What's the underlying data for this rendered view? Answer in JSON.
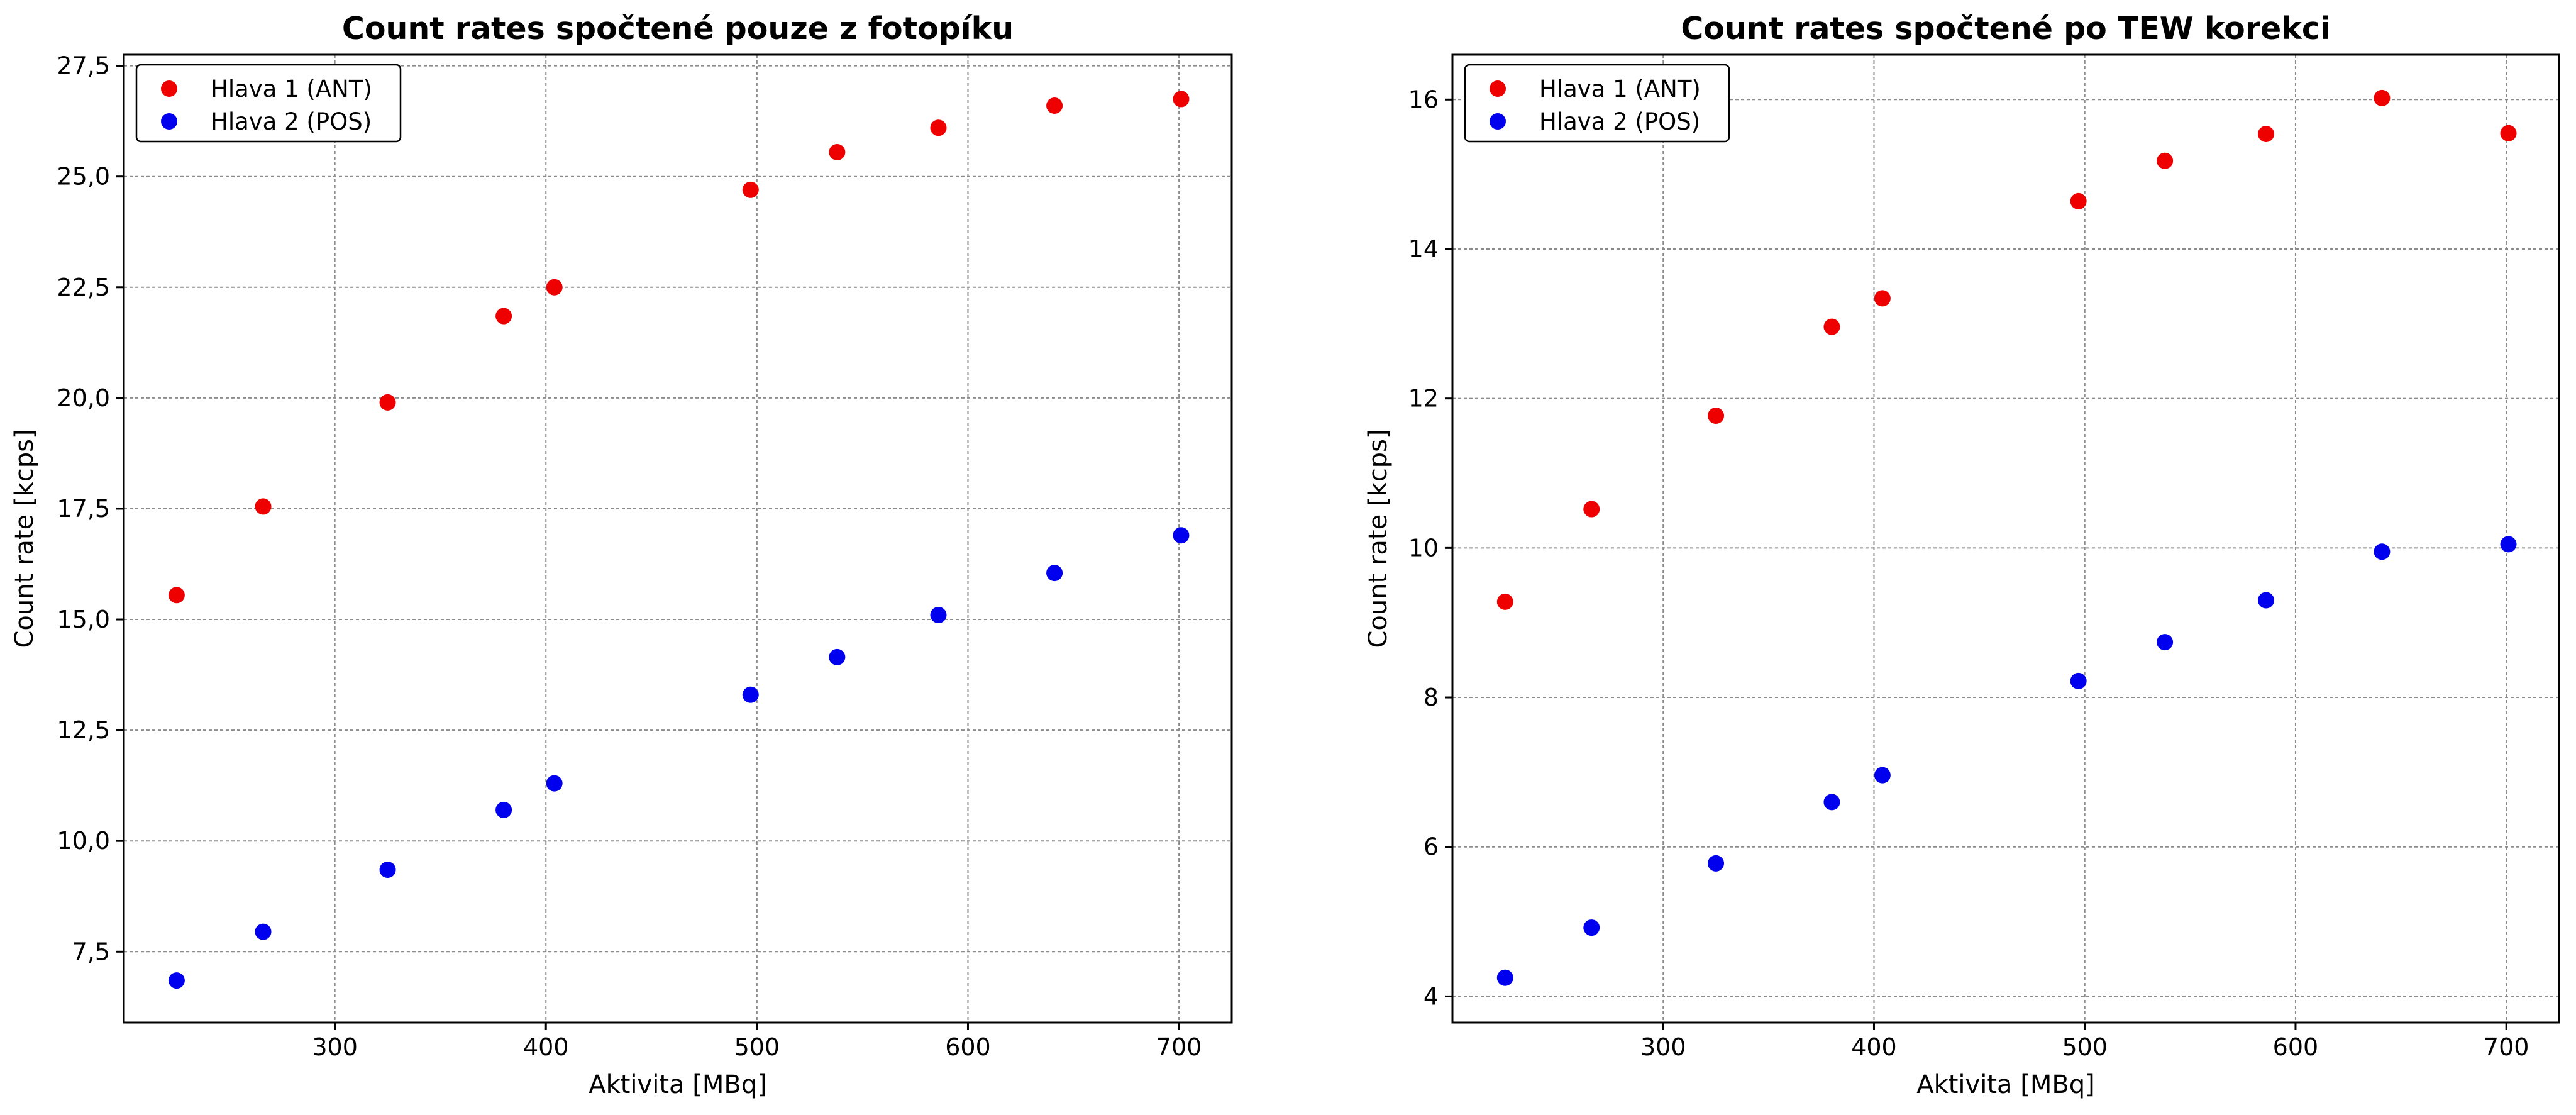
{
  "chart_data": [
    {
      "type": "scatter",
      "title": "Count rates spočtené pouze z fotopíku",
      "xlabel": "Aktivita [MBq]",
      "ylabel": "Count rate [kcps]",
      "xlim": [
        200,
        725
      ],
      "ylim": [
        5.9,
        27.75
      ],
      "xticks": [
        300,
        400,
        500,
        600,
        700
      ],
      "xtick_labels": [
        "300",
        "400",
        "500",
        "600",
        "700"
      ],
      "yticks": [
        7.5,
        10.0,
        12.5,
        15.0,
        17.5,
        20.0,
        22.5,
        25.0,
        27.5
      ],
      "ytick_labels": [
        "7,5",
        "10,0",
        "12,5",
        "15,0",
        "17,5",
        "20,0",
        "22,5",
        "25,0",
        "27,5"
      ],
      "grid": true,
      "legend_position": "top-left",
      "x": [
        225,
        266,
        325,
        380,
        404,
        497,
        538,
        586,
        641,
        701
      ],
      "series": [
        {
          "name": "Hlava 1 (ANT)",
          "color": "#ee0000",
          "values": [
            15.55,
            17.55,
            19.9,
            21.85,
            22.5,
            24.7,
            25.55,
            26.1,
            26.6,
            26.75
          ]
        },
        {
          "name": "Hlava 2 (POS)",
          "color": "#0000ee",
          "values": [
            6.85,
            7.95,
            9.35,
            10.7,
            11.3,
            13.3,
            14.15,
            15.1,
            16.05,
            16.9
          ]
        }
      ]
    },
    {
      "type": "scatter",
      "title": "Count rates spočtené po TEW korekci",
      "xlabel": "Aktivita [MBq]",
      "ylabel": "Count rate [kcps]",
      "xlim": [
        200,
        725
      ],
      "ylim": [
        3.65,
        16.6
      ],
      "xticks": [
        300,
        400,
        500,
        600,
        700
      ],
      "xtick_labels": [
        "300",
        "400",
        "500",
        "600",
        "700"
      ],
      "yticks": [
        4,
        6,
        8,
        10,
        12,
        14,
        16
      ],
      "ytick_labels": [
        "4",
        "6",
        "8",
        "10",
        "12",
        "14",
        "16"
      ],
      "grid": true,
      "legend_position": "top-left",
      "x": [
        225,
        266,
        325,
        380,
        404,
        497,
        538,
        586,
        641,
        701
      ],
      "series": [
        {
          "name": "Hlava 1 (ANT)",
          "color": "#ee0000",
          "values": [
            9.28,
            10.52,
            11.77,
            12.96,
            13.34,
            14.64,
            15.18,
            15.54,
            16.02,
            15.55
          ]
        },
        {
          "name": "Hlava 2 (POS)",
          "color": "#0000ee",
          "values": [
            4.25,
            4.92,
            5.78,
            6.6,
            6.96,
            8.22,
            8.74,
            9.3,
            9.95,
            10.05
          ]
        }
      ]
    }
  ]
}
